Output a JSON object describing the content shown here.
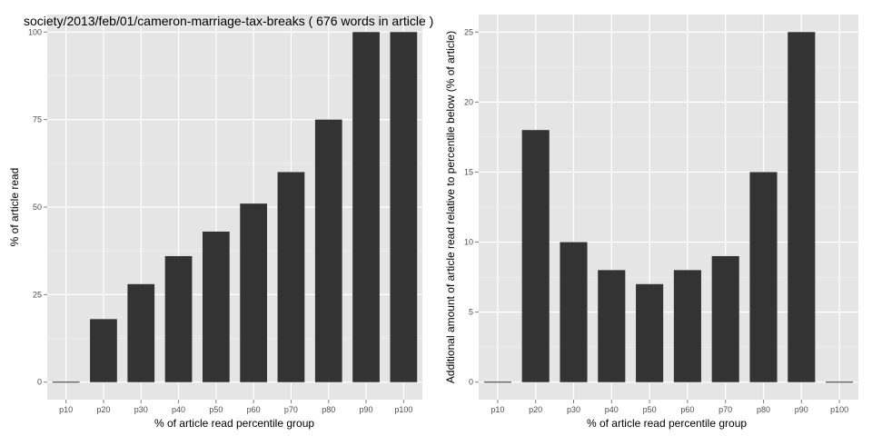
{
  "chart_data": [
    {
      "type": "bar",
      "title": "society/2013/feb/01/cameron-marriage-tax-breaks ( 676 words in article )",
      "xlabel": "% of article read percentile group",
      "ylabel": "% of article read",
      "categories": [
        "p10",
        "p20",
        "p30",
        "p40",
        "p50",
        "p60",
        "p70",
        "p80",
        "p90",
        "p100"
      ],
      "values": [
        0,
        18,
        28,
        36,
        43,
        51,
        60,
        75,
        100,
        100
      ],
      "ylim": [
        0,
        100
      ],
      "yticks": [
        0,
        25,
        50,
        75,
        100
      ],
      "grid": true,
      "colors": {
        "bar": "#333333",
        "panel": "#e5e5e5",
        "grid": "#ffffff"
      }
    },
    {
      "type": "bar",
      "title": "",
      "xlabel": "% of article read percentile group",
      "ylabel": "Additional amount of article read relative to percentile below (% of article)",
      "categories": [
        "p10",
        "p20",
        "p30",
        "p40",
        "p50",
        "p60",
        "p70",
        "p80",
        "p90",
        "p100"
      ],
      "values": [
        0,
        18,
        10,
        8,
        7,
        8,
        9,
        15,
        25,
        0
      ],
      "ylim": [
        0,
        25
      ],
      "yticks": [
        0,
        5,
        10,
        15,
        20,
        25
      ],
      "grid": true,
      "colors": {
        "bar": "#333333",
        "panel": "#e5e5e5",
        "grid": "#ffffff"
      }
    }
  ]
}
